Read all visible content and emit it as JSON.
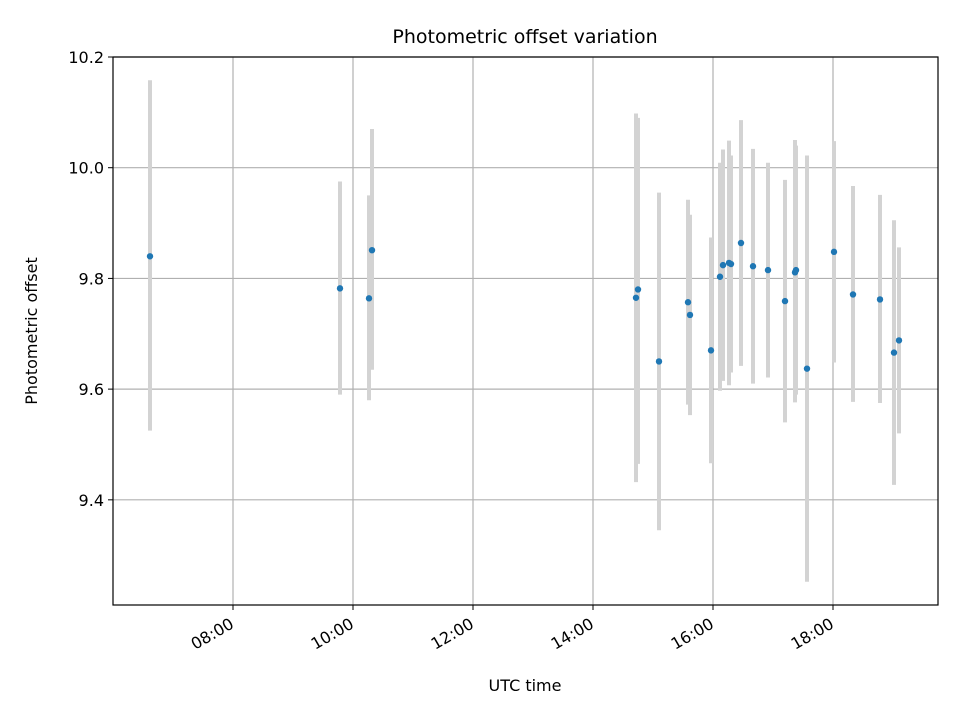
{
  "chart_data": {
    "type": "scatter",
    "title": "Photometric offset variation",
    "xlabel": "UTC time",
    "ylabel": "Photometric offset",
    "xlim": [
      "06:00",
      "19:45"
    ],
    "ylim": [
      9.21,
      10.2
    ],
    "x_ticks": [
      "08:00",
      "10:00",
      "12:00",
      "14:00",
      "16:00",
      "18:00"
    ],
    "y_ticks": [
      9.4,
      9.6,
      9.8,
      10.0,
      10.2
    ],
    "y_tick_labels": [
      "9.4",
      "9.6",
      "9.8",
      "10.0",
      "10.2"
    ],
    "grid": true,
    "colors": {
      "point": "#1f77b4",
      "error_bar": "#d3d3d3",
      "grid": "#b0b0b0"
    },
    "points": [
      {
        "x": "06:37",
        "y": 9.84,
        "err_low": 9.525,
        "err_high": 10.158
      },
      {
        "x": "09:47",
        "y": 9.782,
        "err_low": 9.59,
        "err_high": 9.975
      },
      {
        "x": "10:16",
        "y": 9.764,
        "err_low": 9.58,
        "err_high": 9.95
      },
      {
        "x": "10:19",
        "y": 9.851,
        "err_low": 9.635,
        "err_high": 10.07
      },
      {
        "x": "14:43",
        "y": 9.765,
        "err_low": 9.432,
        "err_high": 10.098
      },
      {
        "x": "14:45",
        "y": 9.78,
        "err_low": 9.465,
        "err_high": 10.09
      },
      {
        "x": "15:06",
        "y": 9.65,
        "err_low": 9.345,
        "err_high": 9.955
      },
      {
        "x": "15:35",
        "y": 9.757,
        "err_low": 9.572,
        "err_high": 9.942
      },
      {
        "x": "15:37",
        "y": 9.734,
        "err_low": 9.553,
        "err_high": 9.915
      },
      {
        "x": "15:58",
        "y": 9.67,
        "err_low": 9.466,
        "err_high": 9.874
      },
      {
        "x": "16:07",
        "y": 9.803,
        "err_low": 9.597,
        "err_high": 10.009
      },
      {
        "x": "16:10",
        "y": 9.824,
        "err_low": 9.615,
        "err_high": 10.033
      },
      {
        "x": "16:16",
        "y": 9.828,
        "err_low": 9.607,
        "err_high": 10.049
      },
      {
        "x": "16:18",
        "y": 9.826,
        "err_low": 9.63,
        "err_high": 10.022
      },
      {
        "x": "16:28",
        "y": 9.864,
        "err_low": 9.642,
        "err_high": 10.086
      },
      {
        "x": "16:40",
        "y": 9.822,
        "err_low": 9.61,
        "err_high": 10.034
      },
      {
        "x": "16:55",
        "y": 9.815,
        "err_low": 9.621,
        "err_high": 10.009
      },
      {
        "x": "17:12",
        "y": 9.759,
        "err_low": 9.54,
        "err_high": 9.978
      },
      {
        "x": "17:22",
        "y": 9.811,
        "err_low": 9.576,
        "err_high": 10.05
      },
      {
        "x": "17:23",
        "y": 9.815,
        "err_low": 9.59,
        "err_high": 10.04
      },
      {
        "x": "17:34",
        "y": 9.637,
        "err_low": 9.252,
        "err_high": 10.022
      },
      {
        "x": "18:01",
        "y": 9.848,
        "err_low": 9.648,
        "err_high": 10.048
      },
      {
        "x": "18:20",
        "y": 9.771,
        "err_low": 9.577,
        "err_high": 9.967
      },
      {
        "x": "18:47",
        "y": 9.762,
        "err_low": 9.575,
        "err_high": 9.951
      },
      {
        "x": "19:01",
        "y": 9.666,
        "err_low": 9.427,
        "err_high": 9.905
      },
      {
        "x": "19:06",
        "y": 9.688,
        "err_low": 9.52,
        "err_high": 9.856
      }
    ]
  }
}
